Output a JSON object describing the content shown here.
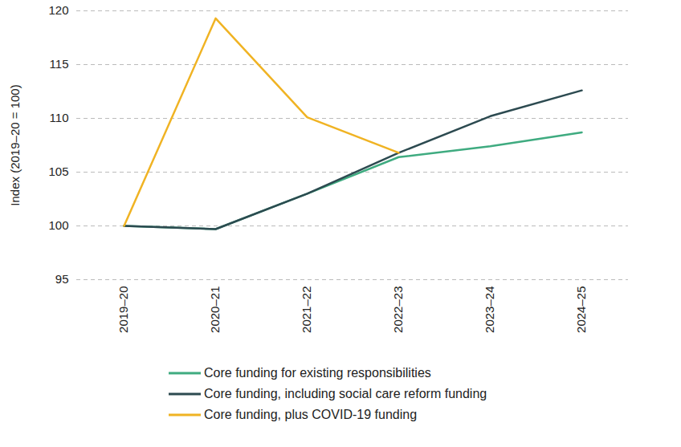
{
  "chart_data": {
    "type": "line",
    "x": [
      "2019–20",
      "2020–21",
      "2021–22",
      "2022–23",
      "2023–24",
      "2024–25"
    ],
    "y_label": "Index (2019–20 = 100)",
    "ylim": [
      95,
      120
    ],
    "yticks": [
      95,
      100,
      105,
      110,
      115,
      120
    ],
    "grid": true,
    "legend": "bottom",
    "series": [
      {
        "name": "Core funding for existing responsibilities",
        "color": "#3fab80",
        "values": [
          100,
          99.7,
          103.0,
          106.4,
          107.4,
          108.7
        ]
      },
      {
        "name": "Core funding, including social care reform funding",
        "color": "#2c4a50",
        "values": [
          100,
          99.7,
          103.0,
          106.8,
          110.2,
          112.6
        ]
      },
      {
        "name": "Core funding, plus COVID-19 funding",
        "color": "#f0b323",
        "values": [
          100,
          119.3,
          110.1,
          106.8,
          null,
          null
        ]
      }
    ]
  }
}
